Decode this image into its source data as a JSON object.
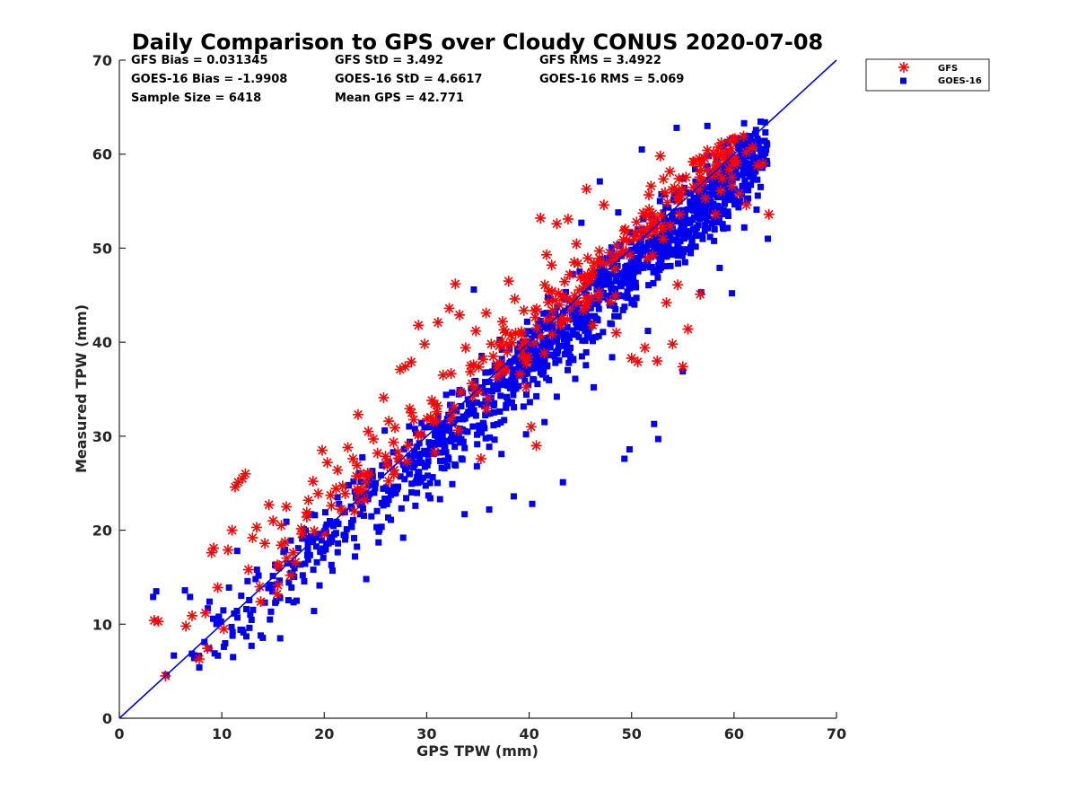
{
  "chart_data": {
    "type": "scatter",
    "title": "Daily Comparison to GPS over Cloudy CONUS 2020-07-08",
    "xlabel": "GPS TPW (mm)",
    "ylabel": "Measured TPW (mm)",
    "xlim": [
      0,
      70
    ],
    "ylim": [
      0,
      70
    ],
    "xticks": [
      "0",
      "10",
      "20",
      "30",
      "40",
      "50",
      "60",
      "70"
    ],
    "yticks": [
      "0",
      "10",
      "20",
      "30",
      "40",
      "50",
      "60",
      "70"
    ],
    "grid": false,
    "legend_position": "outside-top-right",
    "stats": {
      "gfs_bias": "GFS Bias = 0.031345",
      "goes_bias": "GOES-16 Bias = -1.9908",
      "sample_size": "Sample Size = 6418",
      "gfs_std": "GFS StD = 3.492",
      "goes_std": "GOES-16 StD = 4.6617",
      "mean_gps": "Mean GPS = 42.771",
      "gfs_rms": "GFS RMS = 3.4922",
      "goes_rms": "GOES-16 RMS = 5.069"
    },
    "reference_line": {
      "name": "1:1 line",
      "x": [
        0,
        70
      ],
      "y": [
        0,
        70
      ],
      "color": "#0000ee"
    },
    "series": [
      {
        "name": "GFS",
        "marker": "asterisk",
        "color": "#ff0000",
        "points": [
          [
            3.4,
            10.4
          ],
          [
            3.8,
            10.3
          ],
          [
            4.5,
            4.5
          ],
          [
            6.5,
            9.8
          ],
          [
            7.1,
            10.9
          ],
          [
            7.8,
            6.3
          ],
          [
            8.4,
            11.2
          ],
          [
            9.0,
            17.6
          ],
          [
            9.2,
            18.1
          ],
          [
            9.6,
            13.9
          ],
          [
            10.2,
            9.5
          ],
          [
            10.6,
            17.9
          ],
          [
            11.0,
            20.0
          ],
          [
            11.3,
            24.6
          ],
          [
            11.6,
            25.1
          ],
          [
            12.0,
            25.5
          ],
          [
            12.3,
            26.0
          ],
          [
            12.6,
            15.8
          ],
          [
            13.0,
            19.2
          ],
          [
            13.4,
            20.3
          ],
          [
            13.8,
            12.4
          ],
          [
            14.2,
            18.6
          ],
          [
            14.6,
            22.7
          ],
          [
            15.0,
            21.0
          ],
          [
            15.4,
            13.2
          ],
          [
            15.8,
            18.4
          ],
          [
            16.3,
            22.5
          ],
          [
            16.7,
            15.2
          ],
          [
            17.2,
            16.6
          ],
          [
            17.8,
            19.6
          ],
          [
            18.3,
            21.4
          ],
          [
            18.9,
            25.2
          ],
          [
            19.4,
            23.9
          ],
          [
            19.8,
            28.5
          ],
          [
            20.3,
            27.2
          ],
          [
            20.7,
            22.6
          ],
          [
            21.3,
            26.4
          ],
          [
            21.8,
            24.7
          ],
          [
            22.3,
            28.8
          ],
          [
            22.8,
            27.6
          ],
          [
            23.3,
            32.3
          ],
          [
            23.8,
            25.9
          ],
          [
            24.3,
            30.5
          ],
          [
            24.8,
            29.7
          ],
          [
            25.2,
            28.2
          ],
          [
            25.8,
            34.1
          ],
          [
            26.3,
            31.6
          ],
          [
            26.9,
            30.9
          ],
          [
            27.4,
            37.1
          ],
          [
            27.9,
            37.4
          ],
          [
            28.5,
            37.9
          ],
          [
            29.2,
            41.8
          ],
          [
            29.8,
            39.8
          ],
          [
            30.5,
            33.8
          ],
          [
            31.1,
            42.1
          ],
          [
            31.6,
            36.5
          ],
          [
            32.2,
            43.6
          ],
          [
            32.8,
            46.2
          ],
          [
            33.2,
            42.9
          ],
          [
            33.8,
            39.4
          ],
          [
            34.3,
            37.5
          ],
          [
            34.8,
            41.2
          ],
          [
            35.3,
            27.6
          ],
          [
            35.8,
            43.1
          ],
          [
            36.3,
            39.8
          ],
          [
            36.9,
            37.6
          ],
          [
            37.4,
            42.2
          ],
          [
            38.0,
            46.5
          ],
          [
            38.6,
            44.6
          ],
          [
            39.1,
            36.6
          ],
          [
            39.7,
            35.2
          ],
          [
            40.2,
            31.0
          ],
          [
            40.7,
            29.0
          ],
          [
            41.1,
            53.2
          ],
          [
            41.7,
            49.3
          ],
          [
            42.2,
            48.2
          ],
          [
            42.7,
            52.6
          ],
          [
            43.3,
            44.9
          ],
          [
            43.8,
            53.1
          ],
          [
            44.4,
            48.5
          ],
          [
            45.0,
            46.9
          ],
          [
            45.6,
            56.3
          ],
          [
            46.2,
            41.8
          ],
          [
            46.8,
            45.3
          ],
          [
            47.3,
            54.6
          ],
          [
            47.9,
            44.3
          ],
          [
            48.5,
            41.0
          ],
          [
            49.2,
            50.9
          ],
          [
            50.0,
            38.3
          ],
          [
            50.6,
            37.9
          ],
          [
            51.3,
            39.4
          ],
          [
            51.9,
            56.6
          ],
          [
            52.5,
            38.0
          ],
          [
            52.8,
            59.8
          ],
          [
            53.4,
            44.2
          ],
          [
            54.0,
            39.8
          ],
          [
            54.5,
            46.1
          ],
          [
            55.0,
            37.4
          ],
          [
            55.5,
            41.4
          ],
          [
            56.0,
            59.2
          ],
          [
            56.7,
            45.1
          ],
          [
            57.4,
            60.4
          ],
          [
            58.2,
            53.6
          ],
          [
            59.0,
            59.6
          ],
          [
            59.8,
            56.6
          ],
          [
            60.5,
            55.8
          ],
          [
            61.2,
            54.6
          ],
          [
            62.3,
            58.8
          ],
          [
            62.8,
            59.0
          ],
          [
            63.4,
            53.6
          ]
        ]
      },
      {
        "name": "GOES-16",
        "marker": "square",
        "color": "#0000ee",
        "points": [
          [
            3.3,
            12.9
          ],
          [
            3.6,
            13.5
          ],
          [
            4.6,
            4.6
          ],
          [
            6.4,
            13.6
          ],
          [
            6.9,
            12.9
          ],
          [
            7.3,
            6.4
          ],
          [
            7.8,
            5.4
          ],
          [
            8.3,
            8.1
          ],
          [
            8.8,
            12.4
          ],
          [
            9.3,
            6.9
          ],
          [
            9.7,
            10.8
          ],
          [
            10.2,
            7.6
          ],
          [
            10.7,
            13.9
          ],
          [
            11.1,
            6.5
          ],
          [
            11.5,
            17.8
          ],
          [
            12.0,
            9.4
          ],
          [
            12.4,
            11.6
          ],
          [
            12.9,
            7.7
          ],
          [
            13.3,
            14.8
          ],
          [
            13.8,
            8.8
          ],
          [
            14.2,
            12.3
          ],
          [
            14.7,
            10.5
          ],
          [
            15.2,
            16.3
          ],
          [
            15.7,
            8.5
          ],
          [
            16.3,
            20.9
          ],
          [
            16.8,
            13.9
          ],
          [
            17.3,
            12.5
          ],
          [
            17.9,
            15.2
          ],
          [
            18.4,
            18.5
          ],
          [
            19.0,
            11.4
          ],
          [
            19.6,
            17.7
          ],
          [
            20.1,
            21.9
          ],
          [
            20.7,
            16.3
          ],
          [
            21.3,
            23.5
          ],
          [
            21.9,
            19.5
          ],
          [
            22.4,
            24.8
          ],
          [
            23.0,
            17.2
          ],
          [
            23.5,
            21.7
          ],
          [
            24.1,
            14.8
          ],
          [
            24.7,
            26.3
          ],
          [
            25.3,
            18.7
          ],
          [
            25.9,
            30.6
          ],
          [
            26.5,
            21.1
          ],
          [
            27.1,
            24.4
          ],
          [
            27.7,
            19.2
          ],
          [
            28.3,
            27.9
          ],
          [
            28.9,
            22.6
          ],
          [
            29.5,
            31.4
          ],
          [
            30.1,
            25.8
          ],
          [
            30.7,
            29.2
          ],
          [
            31.3,
            23.3
          ],
          [
            31.9,
            34.4
          ],
          [
            32.5,
            24.9
          ],
          [
            33.1,
            30.1
          ],
          [
            33.7,
            21.7
          ],
          [
            34.3,
            32.8
          ],
          [
            34.9,
            26.8
          ],
          [
            35.5,
            31.4
          ],
          [
            36.1,
            22.2
          ],
          [
            36.7,
            35.4
          ],
          [
            37.3,
            28.1
          ],
          [
            37.9,
            33.7
          ],
          [
            38.5,
            23.6
          ],
          [
            39.1,
            36.8
          ],
          [
            39.7,
            30.2
          ],
          [
            40.3,
            22.8
          ],
          [
            40.9,
            38.1
          ],
          [
            41.5,
            31.5
          ],
          [
            42.1,
            44.6
          ],
          [
            42.7,
            34.2
          ],
          [
            43.3,
            25.1
          ],
          [
            43.9,
            40.6
          ],
          [
            44.5,
            36.1
          ],
          [
            45.1,
            52.7
          ],
          [
            45.7,
            42.1
          ],
          [
            46.3,
            35.2
          ],
          [
            46.9,
            57.1
          ],
          [
            47.5,
            44.9
          ],
          [
            48.1,
            38.4
          ],
          [
            48.7,
            53.8
          ],
          [
            49.3,
            27.6
          ],
          [
            49.8,
            28.6
          ],
          [
            50.4,
            46.3
          ],
          [
            51.0,
            60.5
          ],
          [
            51.6,
            41.2
          ],
          [
            52.2,
            31.3
          ],
          [
            52.6,
            29.7
          ],
          [
            53.2,
            55.7
          ],
          [
            53.8,
            48.1
          ],
          [
            54.4,
            62.8
          ],
          [
            55.0,
            36.9
          ],
          [
            55.6,
            51.6
          ],
          [
            56.2,
            58.4
          ],
          [
            56.8,
            45.3
          ],
          [
            57.4,
            63.0
          ],
          [
            58.0,
            53.1
          ],
          [
            58.6,
            47.9
          ],
          [
            59.2,
            56.6
          ],
          [
            59.8,
            45.2
          ],
          [
            60.4,
            61.5
          ],
          [
            61.0,
            52.2
          ],
          [
            61.6,
            57.6
          ],
          [
            62.2,
            54.1
          ],
          [
            62.8,
            58.9
          ],
          [
            63.3,
            51.0
          ],
          [
            34.6,
            45.6
          ],
          [
            39.4,
            38.7
          ],
          [
            44.2,
            43.8
          ],
          [
            48.9,
            50.4
          ],
          [
            53.6,
            52.9
          ]
        ]
      }
    ]
  }
}
